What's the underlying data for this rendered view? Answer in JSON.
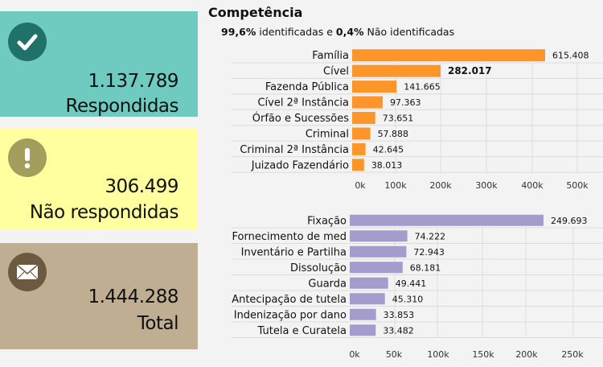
{
  "cards": [
    {
      "id": "respondidas",
      "icon": "check-icon",
      "value": "1.137.789",
      "label": "Respondidas",
      "color": "#6fcbbf",
      "icon_bg": "#1f716a"
    },
    {
      "id": "nao-respondidas",
      "icon": "exclamation-icon",
      "value": "306.499",
      "label": "Não respondidas",
      "color": "#ffff9f",
      "icon_bg": "#a49e5c"
    },
    {
      "id": "total",
      "icon": "envelope-icon",
      "value": "1.444.288",
      "label": "Total",
      "color": "#bfae92",
      "icon_bg": "#6b5a3f"
    }
  ],
  "header": {
    "title": "Competência",
    "subtitle_pct1": "99,6%",
    "subtitle_text1": " identificadas e ",
    "subtitle_pct2": "0,4%",
    "subtitle_text2": " Não identificadas"
  },
  "chart_data": [
    {
      "type": "bar",
      "orientation": "horizontal",
      "title": "Competência",
      "color": "#fd962a",
      "categories": [
        "Família",
        "Cível",
        "Fazenda Pública",
        "Cível 2ª Instância",
        "Órfão e Sucessões",
        "Criminal",
        "Criminal 2ª Instância",
        "Juizado Fazendário"
      ],
      "values": [
        615408,
        282017,
        141665,
        97363,
        73651,
        57888,
        42645,
        38013
      ],
      "value_labels": [
        "615.408",
        "282.017",
        "141.665",
        "97.363",
        "73.651",
        "57.888",
        "42.645",
        "38.013"
      ],
      "bold_label_index": 1,
      "xticks": [
        "0k",
        "100k",
        "200k",
        "300k",
        "400k",
        "500k"
      ],
      "xlim": [
        0,
        500000
      ],
      "grid": true
    },
    {
      "type": "bar",
      "orientation": "horizontal",
      "color": "#a49ccd",
      "categories": [
        "Fixação",
        "Fornecimento de med",
        "Inventário e Partilha",
        "Dissolução",
        "Guarda",
        "Antecipação de tutela",
        "Indenização por dano",
        "Tutela e Curatela"
      ],
      "values": [
        249693,
        74222,
        72943,
        68181,
        49441,
        45310,
        33853,
        33482
      ],
      "value_labels": [
        "249.693",
        "74.222",
        "72.943",
        "68.181",
        "49.441",
        "45.310",
        "33.853",
        "33.482"
      ],
      "bold_label_index": -1,
      "xticks": [
        "0k",
        "50k",
        "100k",
        "150k",
        "200k",
        "250k"
      ],
      "xlim": [
        0,
        250000
      ],
      "grid": true
    }
  ]
}
